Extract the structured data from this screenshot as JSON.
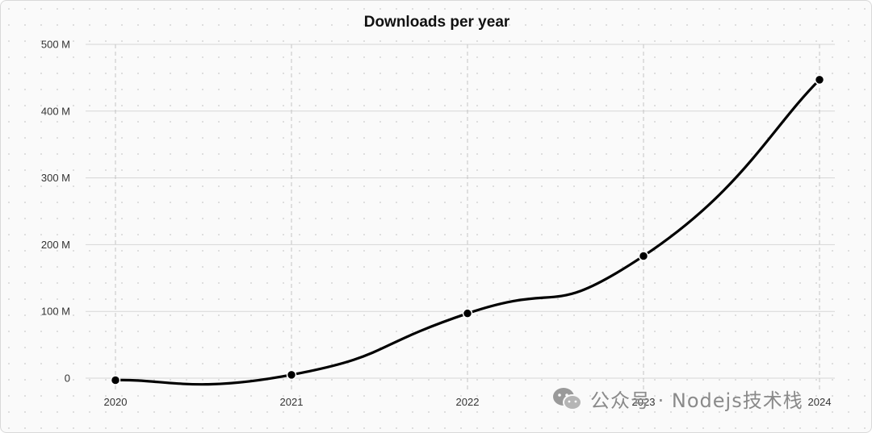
{
  "chart_data": {
    "type": "line",
    "title": "Downloads per year",
    "x": [
      "2020",
      "2021",
      "2022",
      "2023",
      "2024"
    ],
    "y_ticks": [
      "0",
      "100 M",
      "200 M",
      "300 M",
      "400 M",
      "500 M"
    ],
    "ylim": [
      0,
      500
    ],
    "series": [
      {
        "values": [
          -3,
          5,
          97,
          183,
          447
        ]
      }
    ],
    "grid": true,
    "line_color": "#000000"
  },
  "watermark": {
    "text": "公众号 · Nodejs技术栈",
    "icon": "wechat-icon"
  }
}
